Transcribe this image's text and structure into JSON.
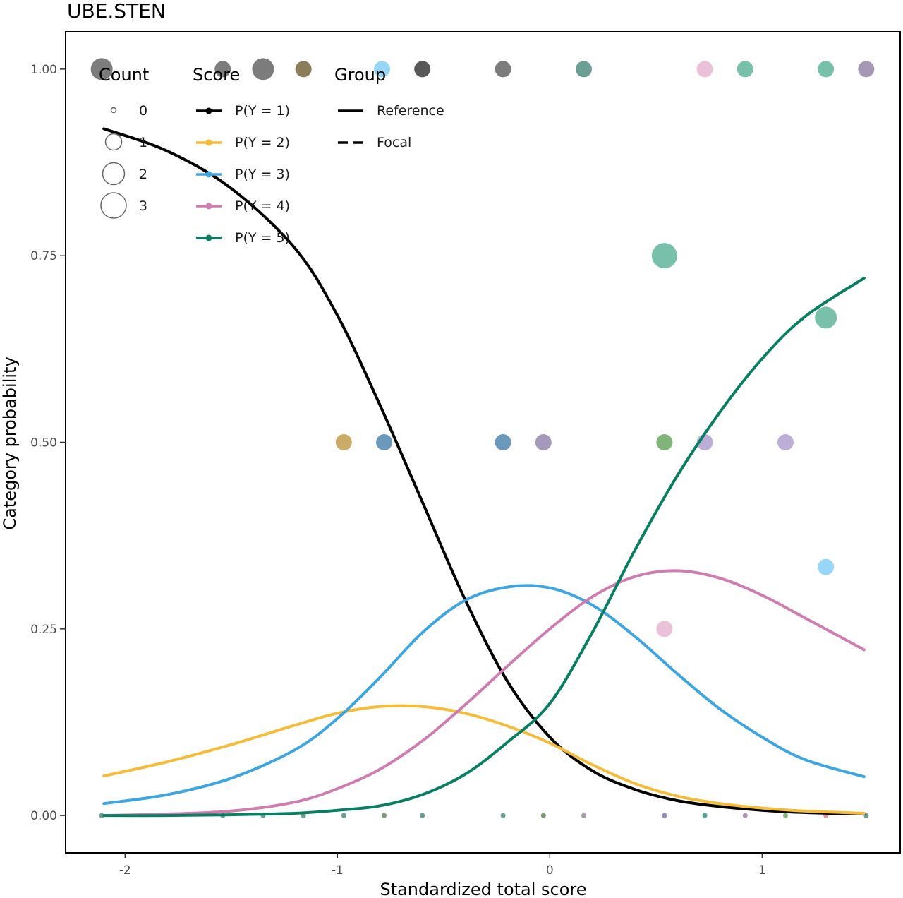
{
  "chart_data": {
    "type": "line",
    "title": "UBE.STEN",
    "xlabel": "Standardized total score",
    "ylabel": "Category probability",
    "xlim": [
      -2.28,
      1.65
    ],
    "ylim": [
      -0.05,
      1.05
    ],
    "x_ticks": [
      -2,
      -1,
      0,
      1
    ],
    "y_ticks": [
      0.0,
      0.25,
      0.5,
      0.75,
      1.0
    ],
    "x_tick_labels": [
      "-2",
      "-1",
      "0",
      "1"
    ],
    "y_tick_labels": [
      "0.00",
      "0.25",
      "0.50",
      "0.75",
      "1.00"
    ],
    "grid": false,
    "legend": {
      "placement": "top-left",
      "count": {
        "title": "Count",
        "entries": [
          {
            "label": "0",
            "size": 0
          },
          {
            "label": "1",
            "size": 1
          },
          {
            "label": "2",
            "size": 2
          },
          {
            "label": "3",
            "size": 3
          }
        ]
      },
      "score": {
        "title": "Score",
        "entries": [
          {
            "label": "P(Y = 1)",
            "color": "#000000"
          },
          {
            "label": "P(Y = 2)",
            "color": "#F5BC3A"
          },
          {
            "label": "P(Y = 3)",
            "color": "#3DA5E0"
          },
          {
            "label": "P(Y = 4)",
            "color": "#CE7DB1"
          },
          {
            "label": "P(Y = 5)",
            "color": "#087E63"
          }
        ]
      },
      "group": {
        "title": "Group",
        "entries": [
          {
            "label": "Reference",
            "dash": "solid"
          },
          {
            "label": "Focal",
            "dash": "dashed"
          }
        ]
      }
    },
    "series": [
      {
        "name": "P(Y = 1)",
        "color": "#000000",
        "x": [
          -2.1,
          -1.8,
          -1.5,
          -1.2,
          -1.0,
          -0.8,
          -0.6,
          -0.4,
          -0.2,
          0.0,
          0.2,
          0.4,
          0.6,
          0.8,
          1.0,
          1.2,
          1.48
        ],
        "y": [
          0.92,
          0.89,
          0.84,
          0.76,
          0.67,
          0.55,
          0.42,
          0.29,
          0.18,
          0.105,
          0.06,
          0.035,
          0.02,
          0.012,
          0.007,
          0.004,
          0.002
        ]
      },
      {
        "name": "P(Y = 2)",
        "color": "#F5BC3A",
        "x": [
          -2.1,
          -1.8,
          -1.5,
          -1.2,
          -1.0,
          -0.8,
          -0.6,
          -0.4,
          -0.2,
          0.0,
          0.2,
          0.4,
          0.6,
          0.8,
          1.0,
          1.2,
          1.48
        ],
        "y": [
          0.053,
          0.072,
          0.095,
          0.121,
          0.137,
          0.146,
          0.146,
          0.137,
          0.12,
          0.097,
          0.068,
          0.043,
          0.026,
          0.016,
          0.01,
          0.006,
          0.003
        ]
      },
      {
        "name": "P(Y = 3)",
        "color": "#3DA5E0",
        "x": [
          -2.1,
          -1.8,
          -1.5,
          -1.2,
          -1.0,
          -0.8,
          -0.6,
          -0.4,
          -0.2,
          0.0,
          0.2,
          0.4,
          0.6,
          0.8,
          1.0,
          1.2,
          1.48
        ],
        "y": [
          0.016,
          0.028,
          0.05,
          0.088,
          0.13,
          0.185,
          0.245,
          0.288,
          0.306,
          0.305,
          0.282,
          0.24,
          0.19,
          0.143,
          0.105,
          0.075,
          0.052
        ]
      },
      {
        "name": "P(Y = 4)",
        "color": "#CE7DB1",
        "x": [
          -2.1,
          -1.8,
          -1.5,
          -1.2,
          -1.0,
          -0.8,
          -0.6,
          -0.4,
          -0.2,
          0.0,
          0.2,
          0.4,
          0.6,
          0.8,
          1.0,
          1.2,
          1.48
        ],
        "y": [
          0.0,
          0.002,
          0.006,
          0.018,
          0.036,
          0.062,
          0.1,
          0.148,
          0.2,
          0.25,
          0.293,
          0.32,
          0.328,
          0.318,
          0.295,
          0.265,
          0.222
        ]
      },
      {
        "name": "P(Y = 5)",
        "color": "#087E63",
        "x": [
          -2.1,
          -1.8,
          -1.5,
          -1.2,
          -1.0,
          -0.8,
          -0.6,
          -0.4,
          -0.2,
          0.0,
          0.2,
          0.4,
          0.6,
          0.8,
          1.0,
          1.2,
          1.48
        ],
        "y": [
          0.0,
          0.0,
          0.001,
          0.003,
          0.007,
          0.013,
          0.028,
          0.055,
          0.098,
          0.15,
          0.245,
          0.355,
          0.455,
          0.54,
          0.612,
          0.668,
          0.72
        ]
      }
    ],
    "points": [
      {
        "x": -2.11,
        "y": 1.0,
        "count": 2,
        "color": "#444444"
      },
      {
        "x": -1.54,
        "y": 1.0,
        "count": 1,
        "color": "#444444"
      },
      {
        "x": -1.35,
        "y": 1.0,
        "count": 2,
        "color": "#444444"
      },
      {
        "x": -1.16,
        "y": 1.0,
        "count": 1,
        "color": "#5a4414"
      },
      {
        "x": -0.79,
        "y": 1.0,
        "count": 1,
        "color": "#6cc4f3"
      },
      {
        "x": -0.6,
        "y": 1.0,
        "count": 1,
        "color": "#111111"
      },
      {
        "x": -0.22,
        "y": 1.0,
        "count": 1,
        "color": "#444444"
      },
      {
        "x": 0.16,
        "y": 1.0,
        "count": 1,
        "color": "#2e7565"
      },
      {
        "x": 0.73,
        "y": 1.0,
        "count": 1,
        "color": "#e3a6c9"
      },
      {
        "x": 0.92,
        "y": 1.0,
        "count": 1,
        "color": "#3fa586"
      },
      {
        "x": 1.3,
        "y": 1.0,
        "count": 1,
        "color": "#3fa586"
      },
      {
        "x": 1.49,
        "y": 1.0,
        "count": 1,
        "color": "#7d6c94"
      },
      {
        "x": -0.97,
        "y": 0.5,
        "count": 1,
        "color": "#b38728"
      },
      {
        "x": -0.78,
        "y": 0.5,
        "count": 1,
        "color": "#2b6e9f"
      },
      {
        "x": -0.22,
        "y": 0.5,
        "count": 1,
        "color": "#2b6e9f"
      },
      {
        "x": -0.03,
        "y": 0.5,
        "count": 1,
        "color": "#7d6c9e"
      },
      {
        "x": 0.54,
        "y": 0.5,
        "count": 1,
        "color": "#4c9440"
      },
      {
        "x": 0.73,
        "y": 0.5,
        "count": 1,
        "color": "#a08bc6"
      },
      {
        "x": 1.11,
        "y": 0.5,
        "count": 1,
        "color": "#a08bc6"
      },
      {
        "x": 0.54,
        "y": 0.75,
        "count": 3,
        "color": "#3fa586"
      },
      {
        "x": 1.3,
        "y": 0.667,
        "count": 2,
        "color": "#3fa586"
      },
      {
        "x": 1.3,
        "y": 0.333,
        "count": 1,
        "color": "#6cc4f3"
      },
      {
        "x": 0.54,
        "y": 0.25,
        "count": 1,
        "color": "#e3a6c9"
      },
      {
        "x": -2.11,
        "y": 0.0,
        "count": 0,
        "color": "#2e7565"
      },
      {
        "x": -1.54,
        "y": 0.0,
        "count": 0,
        "color": "#2e7565"
      },
      {
        "x": -1.35,
        "y": 0.0,
        "count": 0,
        "color": "#2e7565"
      },
      {
        "x": -1.16,
        "y": 0.0,
        "count": 0,
        "color": "#2e7565"
      },
      {
        "x": -0.97,
        "y": 0.0,
        "count": 0,
        "color": "#2e7565"
      },
      {
        "x": -0.78,
        "y": 0.0,
        "count": 0,
        "color": "#4b6b40"
      },
      {
        "x": -0.6,
        "y": 0.0,
        "count": 0,
        "color": "#2e7565"
      },
      {
        "x": -0.22,
        "y": 0.0,
        "count": 0,
        "color": "#2e7565"
      },
      {
        "x": -0.03,
        "y": 0.0,
        "count": 0,
        "color": "#3e6f30"
      },
      {
        "x": 0.16,
        "y": 0.0,
        "count": 0,
        "color": "#8a6b8a"
      },
      {
        "x": 0.54,
        "y": 0.0,
        "count": 0,
        "color": "#6a5a9a"
      },
      {
        "x": 0.73,
        "y": 0.0,
        "count": 0,
        "color": "#087e63"
      },
      {
        "x": 0.92,
        "y": 0.0,
        "count": 0,
        "color": "#8a6b8a"
      },
      {
        "x": 1.11,
        "y": 0.0,
        "count": 0,
        "color": "#4c9440"
      },
      {
        "x": 1.3,
        "y": 0.0,
        "count": 0,
        "color": "#d46a6a"
      },
      {
        "x": 1.49,
        "y": 0.0,
        "count": 0,
        "color": "#2e7565"
      }
    ]
  }
}
